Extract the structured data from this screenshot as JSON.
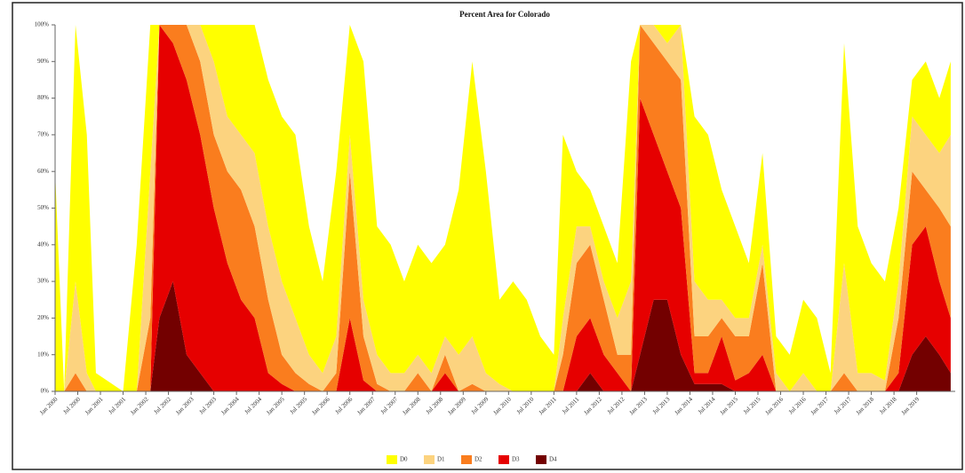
{
  "chart_data": {
    "type": "stacked_area",
    "title": "Percent Area for Colorado",
    "x": [
      2000.0,
      2000.2,
      2000.45,
      2000.7,
      2000.9,
      2001.5,
      2001.8,
      2002.1,
      2002.3,
      2002.6,
      2002.9,
      2003.2,
      2003.5,
      2003.8,
      2004.1,
      2004.4,
      2004.7,
      2005.0,
      2005.3,
      2005.6,
      2005.9,
      2006.2,
      2006.5,
      2006.8,
      2007.1,
      2007.4,
      2007.7,
      2008.0,
      2008.3,
      2008.6,
      2008.9,
      2009.2,
      2009.5,
      2009.8,
      2010.1,
      2010.4,
      2010.7,
      2011.0,
      2011.2,
      2011.5,
      2011.8,
      2012.1,
      2012.4,
      2012.7,
      2012.9,
      2013.2,
      2013.5,
      2013.8,
      2014.1,
      2014.4,
      2014.7,
      2015.0,
      2015.3,
      2015.6,
      2015.9,
      2016.2,
      2016.5,
      2016.8,
      2017.1,
      2017.4,
      2017.7,
      2018.0,
      2018.3,
      2018.6,
      2018.9,
      2019.2,
      2019.5,
      2019.75
    ],
    "series": [
      {
        "name": "D0",
        "color": "#ffff00",
        "values": [
          60,
          0,
          70,
          65,
          5,
          0,
          40,
          40,
          0,
          0,
          0,
          0,
          10,
          25,
          30,
          35,
          40,
          45,
          50,
          35,
          25,
          45,
          30,
          65,
          35,
          35,
          25,
          30,
          30,
          25,
          45,
          75,
          55,
          23,
          30,
          25,
          15,
          10,
          50,
          15,
          10,
          15,
          15,
          60,
          0,
          0,
          5,
          0,
          45,
          45,
          30,
          25,
          15,
          25,
          10,
          10,
          20,
          20,
          5,
          60,
          40,
          30,
          27,
          20,
          10,
          20,
          15,
          20
        ]
      },
      {
        "name": "D1",
        "color": "#fcd37f",
        "values": [
          0,
          0,
          25,
          5,
          0,
          0,
          0,
          40,
          0,
          0,
          0,
          10,
          20,
          15,
          15,
          20,
          20,
          20,
          15,
          8,
          5,
          10,
          10,
          10,
          8,
          5,
          5,
          5,
          5,
          5,
          10,
          13,
          5,
          2,
          0,
          0,
          0,
          0,
          10,
          10,
          5,
          5,
          10,
          20,
          0,
          5,
          5,
          15,
          15,
          10,
          5,
          5,
          5,
          5,
          5,
          0,
          5,
          0,
          0,
          30,
          5,
          5,
          3,
          10,
          15,
          15,
          15,
          25
        ]
      },
      {
        "name": "D2",
        "color": "#fa7d1e",
        "values": [
          0,
          0,
          5,
          0,
          0,
          0,
          0,
          20,
          0,
          5,
          15,
          20,
          20,
          25,
          30,
          25,
          20,
          8,
          5,
          2,
          0,
          5,
          40,
          12,
          2,
          0,
          0,
          5,
          0,
          5,
          0,
          2,
          0,
          0,
          0,
          0,
          0,
          0,
          10,
          20,
          20,
          15,
          5,
          10,
          20,
          25,
          30,
          35,
          10,
          10,
          5,
          12,
          10,
          25,
          0,
          0,
          0,
          0,
          0,
          5,
          0,
          0,
          0,
          15,
          20,
          10,
          20,
          25
        ]
      },
      {
        "name": "D3",
        "color": "#e60000",
        "values": [
          0,
          0,
          0,
          0,
          0,
          0,
          0,
          0,
          80,
          65,
          75,
          65,
          50,
          35,
          25,
          20,
          5,
          2,
          0,
          0,
          0,
          0,
          20,
          3,
          0,
          0,
          0,
          0,
          0,
          5,
          0,
          0,
          0,
          0,
          0,
          0,
          0,
          0,
          0,
          15,
          15,
          10,
          5,
          0,
          70,
          45,
          35,
          40,
          3,
          3,
          13,
          3,
          5,
          10,
          0,
          0,
          0,
          0,
          0,
          0,
          0,
          0,
          0,
          5,
          30,
          30,
          20,
          15
        ]
      },
      {
        "name": "D4",
        "color": "#730000",
        "values": [
          0,
          0,
          0,
          0,
          0,
          0,
          0,
          0,
          20,
          30,
          10,
          5,
          0,
          0,
          0,
          0,
          0,
          0,
          0,
          0,
          0,
          0,
          0,
          0,
          0,
          0,
          0,
          0,
          0,
          0,
          0,
          0,
          0,
          0,
          0,
          0,
          0,
          0,
          0,
          0,
          5,
          0,
          0,
          0,
          10,
          25,
          25,
          10,
          2,
          2,
          2,
          0,
          0,
          0,
          0,
          0,
          0,
          0,
          0,
          0,
          0,
          0,
          0,
          0,
          10,
          15,
          10,
          5
        ]
      }
    ],
    "xlim": [
      2000,
      2019.85
    ],
    "xticks": [
      {
        "value": 2000,
        "label": "Jan 2000"
      },
      {
        "value": 2000.5,
        "label": "Jul 2000"
      },
      {
        "value": 2001,
        "label": "Jan 2001"
      },
      {
        "value": 2001.5,
        "label": "Jul 2001"
      },
      {
        "value": 2002,
        "label": "Jan 2002"
      },
      {
        "value": 2002.5,
        "label": "Jul 2002"
      },
      {
        "value": 2003,
        "label": "Jan 2003"
      },
      {
        "value": 2003.5,
        "label": "Jul 2003"
      },
      {
        "value": 2004,
        "label": "Jan 2004"
      },
      {
        "value": 2004.5,
        "label": "Jul 2004"
      },
      {
        "value": 2005,
        "label": "Jan 2005"
      },
      {
        "value": 2005.5,
        "label": "Jul 2005"
      },
      {
        "value": 2006,
        "label": "Jan 2006"
      },
      {
        "value": 2006.5,
        "label": "Jul 2006"
      },
      {
        "value": 2007,
        "label": "Jan 2007"
      },
      {
        "value": 2007.5,
        "label": "Jul 2007"
      },
      {
        "value": 2008,
        "label": "Jan 2008"
      },
      {
        "value": 2008.5,
        "label": "Jul 2008"
      },
      {
        "value": 2009,
        "label": "Jan 2009"
      },
      {
        "value": 2009.5,
        "label": "Jul 2009"
      },
      {
        "value": 2010,
        "label": "Jan 2010"
      },
      {
        "value": 2010.5,
        "label": "Jul 2010"
      },
      {
        "value": 2011,
        "label": "Jan 2011"
      },
      {
        "value": 2011.5,
        "label": "Jul 2011"
      },
      {
        "value": 2012,
        "label": "Jan 2012"
      },
      {
        "value": 2012.5,
        "label": "Jul 2012"
      },
      {
        "value": 2013,
        "label": "Jan 2013"
      },
      {
        "value": 2013.5,
        "label": "Jul 2013"
      },
      {
        "value": 2014,
        "label": "Jan 2014"
      },
      {
        "value": 2014.5,
        "label": "Jul 2014"
      },
      {
        "value": 2015,
        "label": "Jan 2015"
      },
      {
        "value": 2015.5,
        "label": "Jul 2015"
      },
      {
        "value": 2016,
        "label": "Jan 2016"
      },
      {
        "value": 2016.5,
        "label": "Jul 2016"
      },
      {
        "value": 2017,
        "label": "Jan 2017"
      },
      {
        "value": 2017.5,
        "label": "Jul 2017"
      },
      {
        "value": 2018,
        "label": "Jan 2018"
      },
      {
        "value": 2018.5,
        "label": "Jul 2018"
      },
      {
        "value": 2019,
        "label": "Jan 2019"
      }
    ],
    "ylim": [
      0,
      100
    ],
    "yticks": [
      {
        "value": 0,
        "label": "0%"
      },
      {
        "value": 10,
        "label": "10%"
      },
      {
        "value": 20,
        "label": "20%"
      },
      {
        "value": 30,
        "label": "30%"
      },
      {
        "value": 40,
        "label": "40%"
      },
      {
        "value": 50,
        "label": "50%"
      },
      {
        "value": 60,
        "label": "60%"
      },
      {
        "value": 70,
        "label": "70%"
      },
      {
        "value": 80,
        "label": "80%"
      },
      {
        "value": 90,
        "label": "90%"
      },
      {
        "value": 100,
        "label": "100%"
      }
    ],
    "legend": "bottom",
    "grid": false
  }
}
